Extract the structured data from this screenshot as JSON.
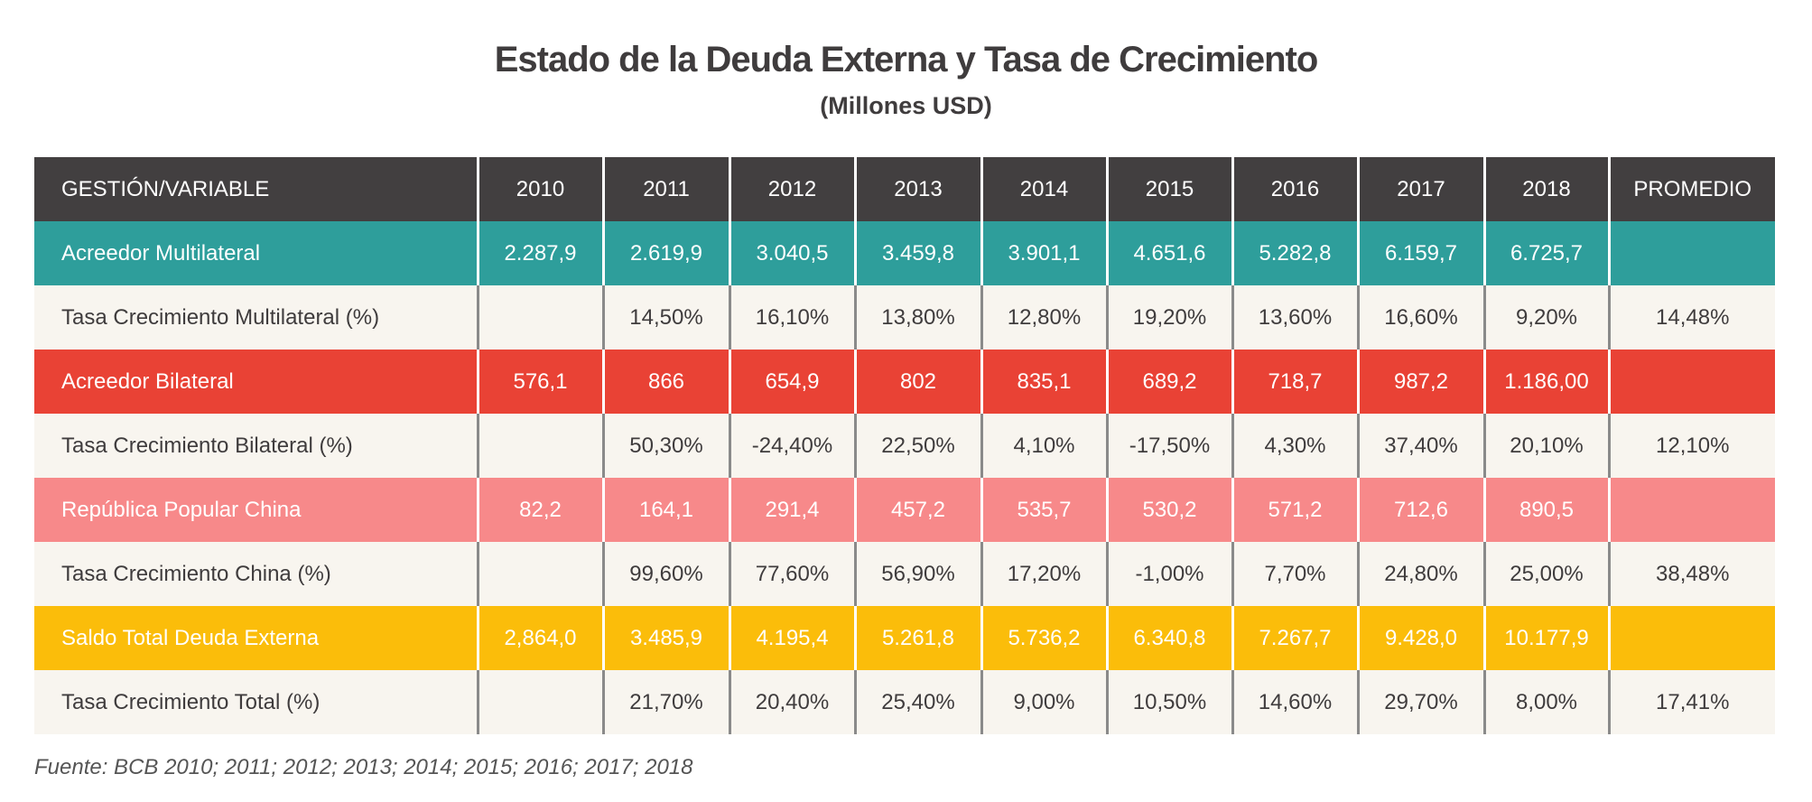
{
  "title": "Estado de la Deuda Externa y Tasa de Crecimiento",
  "subtitle": "(Millones USD)",
  "colors": {
    "header": "#423f40",
    "multilateral": "#2e9e9b",
    "bilateral": "#e94235",
    "china": "#f7898a",
    "total": "#fbbd0a",
    "rate_rows": "#f8f5ef"
  },
  "table": {
    "headers": [
      "GESTIÓN/VARIABLE",
      "2010",
      "2011",
      "2012",
      "2013",
      "2014",
      "2015",
      "2016",
      "2017",
      "2018",
      "PROMEDIO"
    ],
    "rows": [
      {
        "kind": "multi",
        "cells": [
          "Acreedor Multilateral",
          "2.287,9",
          "2.619,9",
          "3.040,5",
          "3.459,8",
          "3.901,1",
          "4.651,6",
          "5.282,8",
          "6.159,7",
          "6.725,7",
          ""
        ]
      },
      {
        "kind": "rate",
        "cells": [
          "Tasa Crecimiento Multilateral (%)",
          "",
          "14,50%",
          "16,10%",
          "13,80%",
          "12,80%",
          "19,20%",
          "13,60%",
          "16,60%",
          "9,20%",
          "14,48%"
        ]
      },
      {
        "kind": "bil",
        "cells": [
          "Acreedor Bilateral",
          "576,1",
          "866",
          "654,9",
          "802",
          "835,1",
          "689,2",
          "718,7",
          "987,2",
          "1.186,00",
          ""
        ]
      },
      {
        "kind": "rate",
        "cells": [
          "Tasa Crecimiento Bilateral (%)",
          "",
          "50,30%",
          "-24,40%",
          "22,50%",
          "4,10%",
          "-17,50%",
          "4,30%",
          "37,40%",
          "20,10%",
          "12,10%"
        ]
      },
      {
        "kind": "china",
        "cells": [
          "República Popular China",
          "82,2",
          "164,1",
          "291,4",
          "457,2",
          "535,7",
          "530,2",
          "571,2",
          "712,6",
          "890,5",
          ""
        ]
      },
      {
        "kind": "rate",
        "cells": [
          "Tasa Crecimiento China (%)",
          "",
          "99,60%",
          "77,60%",
          "56,90%",
          "17,20%",
          "-1,00%",
          "7,70%",
          "24,80%",
          "25,00%",
          "38,48%"
        ]
      },
      {
        "kind": "total",
        "cells": [
          "Saldo Total Deuda Externa",
          "2,864,0",
          "3.485,9",
          "4.195,4",
          "5.261,8",
          "5.736,2",
          "6.340,8",
          "7.267,7",
          "9.428,0",
          "10.177,9",
          ""
        ]
      },
      {
        "kind": "rate",
        "cells": [
          "Tasa Crecimiento Total (%)",
          "",
          "21,70%",
          "20,40%",
          "25,40%",
          "9,00%",
          "10,50%",
          "14,60%",
          "29,70%",
          "8,00%",
          "17,41%"
        ]
      }
    ]
  },
  "footer": "Fuente: BCB 2010; 2011; 2012; 2013; 2014; 2015; 2016; 2017; 2018"
}
